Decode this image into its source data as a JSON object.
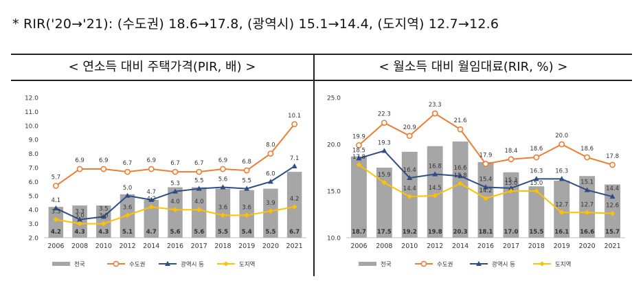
{
  "note": "* RIR('20→'21): (수도권) 18.6→17.8, (광역시) 15.1→14.4, (도지역) 12.7→12.6",
  "panels": {
    "left_title": "< 연소득 대비 주택가격(PIR, 배) >",
    "right_title": "< 월소득 대비 월임대료(RIR, %) >"
  },
  "colors": {
    "national": "#a6a6a6",
    "capital": "#ed7d31",
    "metro": "#2e4d87",
    "province": "#ffc000"
  },
  "chart_data": [
    {
      "type": "bar",
      "title": "< 연소득 대비 주택가격(PIR, 배) >",
      "categories": [
        "2006",
        "2008",
        "2010",
        "2012",
        "2014",
        "2016",
        "2017",
        "2018",
        "2019",
        "2020",
        "2021"
      ],
      "ylim": [
        2.0,
        12.0
      ],
      "yticks": [
        "2.0",
        "3.0",
        "4.0",
        "5.0",
        "6.0",
        "7.0",
        "8.0",
        "9.0",
        "10.0",
        "11.0",
        "12.0"
      ],
      "legend_position": "bottom",
      "series": [
        {
          "name": "전국",
          "type": "bar",
          "values": [
            4.2,
            4.3,
            4.3,
            5.1,
            4.7,
            5.6,
            5.6,
            5.5,
            5.4,
            5.5,
            6.7
          ]
        },
        {
          "name": "수도권",
          "type": "line",
          "values": [
            5.7,
            6.9,
            6.9,
            6.7,
            6.9,
            6.7,
            6.7,
            6.9,
            6.8,
            8.0,
            10.1
          ]
        },
        {
          "name": "광역시 등",
          "type": "line",
          "values": [
            4.1,
            3.3,
            3.5,
            5.0,
            4.7,
            5.3,
            5.5,
            5.6,
            5.5,
            6.0,
            7.1
          ]
        },
        {
          "name": "도지역",
          "type": "line",
          "values": [
            3.3,
            3.0,
            3.0,
            3.6,
            4.2,
            4.0,
            4.0,
            3.6,
            3.6,
            3.9,
            4.2
          ]
        }
      ]
    },
    {
      "type": "bar",
      "title": "< 월소득 대비 월임대료(RIR, %) >",
      "categories": [
        "2006",
        "2008",
        "2010",
        "2012",
        "2014",
        "2016",
        "2017",
        "2018",
        "2019",
        "2020",
        "2021"
      ],
      "ylim": [
        10.0,
        25.0
      ],
      "yticks": [
        "10.0",
        "15.0",
        "20.0",
        "25.0"
      ],
      "legend_position": "bottom",
      "series": [
        {
          "name": "전국",
          "type": "bar",
          "values": [
            18.7,
            17.5,
            19.2,
            19.8,
            20.3,
            18.1,
            17.0,
            15.5,
            16.1,
            16.6,
            15.7
          ]
        },
        {
          "name": "수도권",
          "type": "line",
          "values": [
            19.9,
            22.3,
            20.9,
            23.3,
            21.6,
            17.9,
            18.4,
            18.6,
            20.0,
            18.6,
            17.8
          ]
        },
        {
          "name": "광역시 등",
          "type": "line",
          "values": [
            18.5,
            19.3,
            16.4,
            16.8,
            16.6,
            15.4,
            15.3,
            16.3,
            16.3,
            15.1,
            14.4
          ]
        },
        {
          "name": "도지역",
          "type": "line",
          "values": [
            17.8,
            15.9,
            14.4,
            14.5,
            15.8,
            14.2,
            15.0,
            15.0,
            12.7,
            12.7,
            12.6
          ]
        }
      ]
    }
  ]
}
